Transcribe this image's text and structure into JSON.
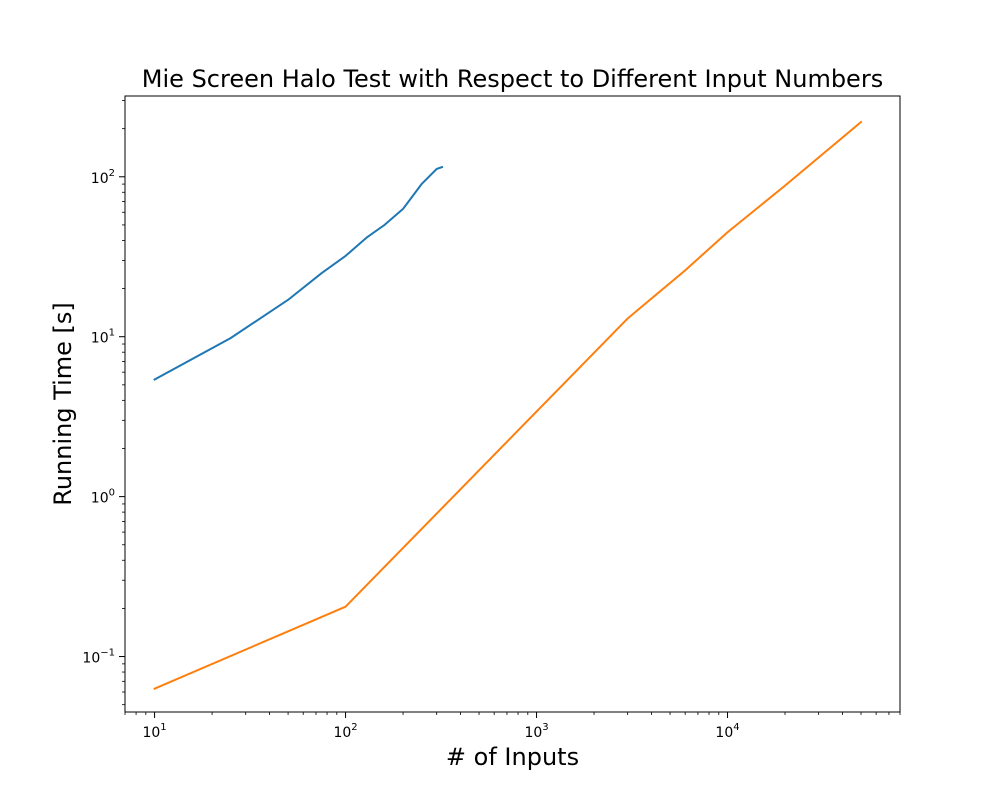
{
  "chart_data": {
    "type": "line",
    "title": "Mie Screen Halo Test with Respect to Different Input Numbers",
    "xlabel": "# of Inputs",
    "ylabel": "Running Time [s]",
    "xscale": "log",
    "yscale": "log",
    "xlim": [
      7,
      80000
    ],
    "ylim": [
      0.045,
      320
    ],
    "grid": false,
    "legend": "none",
    "x_ticks": [
      {
        "value": 10,
        "base": "10",
        "exp": "1"
      },
      {
        "value": 100,
        "base": "10",
        "exp": "2"
      },
      {
        "value": 1000,
        "base": "10",
        "exp": "3"
      },
      {
        "value": 10000,
        "base": "10",
        "exp": "4"
      }
    ],
    "y_ticks": [
      {
        "value": 0.1,
        "base": "10",
        "exp": "−1"
      },
      {
        "value": 1,
        "base": "10",
        "exp": "0"
      },
      {
        "value": 10,
        "base": "10",
        "exp": "1"
      },
      {
        "value": 100,
        "base": "10",
        "exp": "2"
      }
    ],
    "series": [
      {
        "color": "#1f77b4",
        "x": [
          10,
          25,
          50,
          75,
          100,
          130,
          160,
          200,
          250,
          300,
          320
        ],
        "y": [
          5.4,
          9.8,
          17,
          25,
          32,
          42,
          50,
          63,
          90,
          112,
          115
        ]
      },
      {
        "color": "#ff7f0e",
        "x": [
          10,
          100,
          3000,
          6000,
          10000,
          20000,
          50000
        ],
        "y": [
          0.063,
          0.205,
          13,
          26,
          45,
          88,
          220
        ]
      }
    ]
  }
}
